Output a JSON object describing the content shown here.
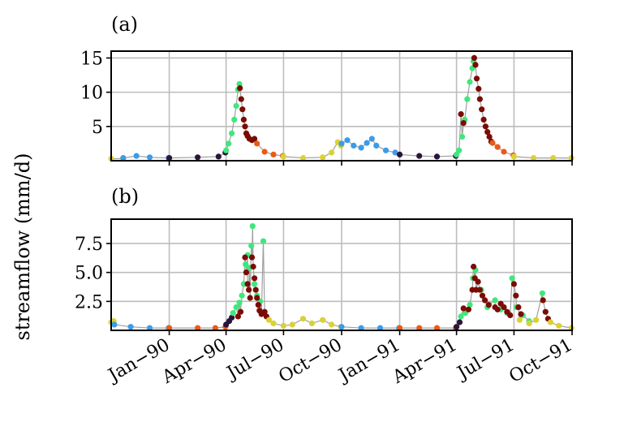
{
  "figure": {
    "ylabel": "streamflow (mm/d)",
    "panel_a_label": "(a)",
    "panel_b_label": "(b)"
  },
  "chart_data": [
    {
      "type": "scatter",
      "panel": "(a)",
      "ylim": [
        0,
        16
      ],
      "yticks": [
        5,
        10,
        15
      ],
      "ytick_labels": [
        "5",
        "10",
        "15"
      ],
      "xlim_months": [
        "1989-10-01",
        "1991-10-01"
      ],
      "grid": true,
      "colors": {
        "blue": "#3d9be8",
        "dark": "#2a1538",
        "green": "#3fe77d",
        "maroon": "#7a0c04",
        "orange": "#e85b19",
        "yellow": "#d9d234",
        "line": "#a0a0a0"
      },
      "segments": [
        {
          "color": "yellow",
          "points": [
            [
              "1989-10-01",
              0.3
            ],
            [
              "1989-10-20",
              0.3
            ]
          ]
        },
        {
          "color": "blue",
          "points": [
            [
              "1989-10-20",
              0.4
            ],
            [
              "1989-11-10",
              0.7
            ],
            [
              "1989-12-01",
              0.5
            ],
            [
              "1989-12-31",
              0.4
            ]
          ]
        },
        {
          "color": "dark",
          "points": [
            [
              "1990-01-01",
              0.4
            ],
            [
              "1990-02-15",
              0.5
            ],
            [
              "1990-03-20",
              0.6
            ],
            [
              "1990-03-31",
              1.2
            ]
          ]
        },
        {
          "color": "green",
          "points": [
            [
              "1990-04-01",
              1.5
            ],
            [
              "1990-04-05",
              2.5
            ],
            [
              "1990-04-10",
              4
            ],
            [
              "1990-04-14",
              6
            ],
            [
              "1990-04-17",
              8
            ],
            [
              "1990-04-20",
              10.4
            ],
            [
              "1990-04-22",
              11.2
            ]
          ]
        },
        {
          "color": "maroon",
          "points": [
            [
              "1990-04-23",
              10.6
            ],
            [
              "1990-04-25",
              9
            ],
            [
              "1990-04-27",
              7.5
            ],
            [
              "1990-04-29",
              6
            ],
            [
              "1990-05-01",
              5
            ],
            [
              "1990-05-03",
              4
            ],
            [
              "1990-05-05",
              3.6
            ],
            [
              "1990-05-08",
              3.2
            ],
            [
              "1990-05-12",
              3
            ],
            [
              "1990-05-16",
              3.2
            ]
          ]
        },
        {
          "color": "orange",
          "points": [
            [
              "1990-05-20",
              2.5
            ],
            [
              "1990-06-01",
              1.3
            ],
            [
              "1990-06-15",
              0.9
            ],
            [
              "1990-06-30",
              0.7
            ]
          ]
        },
        {
          "color": "yellow",
          "points": [
            [
              "1990-07-01",
              0.6
            ],
            [
              "1990-08-01",
              0.4
            ],
            [
              "1990-09-01",
              0.5
            ],
            [
              "1990-09-15",
              1.2
            ],
            [
              "1990-09-25",
              2.7
            ],
            [
              "1990-09-30",
              2.2
            ]
          ]
        },
        {
          "color": "blue",
          "points": [
            [
              "1990-10-01",
              2.5
            ],
            [
              "1990-10-10",
              3.0
            ],
            [
              "1990-10-20",
              2.2
            ],
            [
              "1990-11-01",
              1.9
            ],
            [
              "1990-11-10",
              2.6
            ],
            [
              "1990-11-18",
              3.2
            ],
            [
              "1990-11-25",
              2.2
            ],
            [
              "1990-12-10",
              1.5
            ],
            [
              "1990-12-25",
              1.2
            ]
          ]
        },
        {
          "color": "dark",
          "points": [
            [
              "1991-01-01",
              0.9
            ],
            [
              "1991-02-01",
              0.7
            ],
            [
              "1991-03-01",
              0.6
            ],
            [
              "1991-03-31",
              0.7
            ]
          ]
        },
        {
          "color": "green",
          "points": [
            [
              "1991-04-01",
              0.9
            ],
            [
              "1991-04-05",
              1.5
            ],
            [
              "1991-04-10",
              3.5
            ],
            [
              "1991-04-14",
              6
            ],
            [
              "1991-04-18",
              9
            ],
            [
              "1991-04-22",
              11.5
            ],
            [
              "1991-04-26",
              13.5
            ],
            [
              "1991-04-28",
              14.5
            ]
          ]
        },
        {
          "color": "maroon",
          "points": [
            [
              "1991-04-08",
              6.8
            ],
            [
              "1991-04-12",
              5.5
            ],
            [
              "1991-04-29",
              15
            ],
            [
              "1991-05-01",
              14
            ],
            [
              "1991-05-03",
              12
            ],
            [
              "1991-05-06",
              10.5
            ],
            [
              "1991-05-08",
              9
            ],
            [
              "1991-05-11",
              7.5
            ],
            [
              "1991-05-14",
              6
            ],
            [
              "1991-05-17",
              5
            ],
            [
              "1991-05-20",
              4.2
            ],
            [
              "1991-05-23",
              3.5
            ],
            [
              "1991-05-26",
              2.8
            ]
          ]
        },
        {
          "color": "orange",
          "points": [
            [
              "1991-05-28",
              2.6
            ],
            [
              "1991-06-05",
              2
            ],
            [
              "1991-06-15",
              1.3
            ],
            [
              "1991-06-30",
              0.8
            ]
          ]
        },
        {
          "color": "yellow",
          "points": [
            [
              "1991-07-01",
              0.6
            ],
            [
              "1991-08-01",
              0.4
            ],
            [
              "1991-09-01",
              0.4
            ],
            [
              "1991-09-30",
              0.4
            ]
          ]
        }
      ]
    },
    {
      "type": "scatter",
      "panel": "(b)",
      "ylim": [
        0,
        9.6
      ],
      "yticks": [
        2.5,
        5.0,
        7.5
      ],
      "ytick_labels": [
        "2.5",
        "5.0",
        "7.5"
      ],
      "xlim_months": [
        "1989-10-01",
        "1991-10-01"
      ],
      "xticks": [
        "1990-01-01",
        "1990-04-01",
        "1990-07-01",
        "1990-10-01",
        "1991-01-01",
        "1991-04-01",
        "1991-07-01",
        "1991-10-01"
      ],
      "xtick_labels": [
        "Jan−90",
        "Apr−90",
        "Jul−90",
        "Oct−90",
        "Jan−91",
        "Apr−91",
        "Jul−91",
        "Oct−91"
      ],
      "grid": true,
      "segments": [
        {
          "color": "yellow",
          "points": [
            [
              "1989-10-01",
              0.7
            ],
            [
              "1989-10-05",
              0.8
            ]
          ]
        },
        {
          "color": "blue",
          "points": [
            [
              "1989-10-06",
              0.5
            ],
            [
              "1989-11-01",
              0.3
            ],
            [
              "1989-12-01",
              0.2
            ],
            [
              "1989-12-31",
              0.2
            ]
          ]
        },
        {
          "color": "orange",
          "points": [
            [
              "1990-01-01",
              0.2
            ],
            [
              "1990-02-15",
              0.2
            ],
            [
              "1990-03-15",
              0.2
            ],
            [
              "1990-03-31",
              0.3
            ]
          ]
        },
        {
          "color": "dark",
          "points": [
            [
              "1990-04-01",
              0.5
            ],
            [
              "1990-04-06",
              0.8
            ],
            [
              "1990-04-10",
              1.1
            ]
          ]
        },
        {
          "color": "green",
          "points": [
            [
              "1990-04-12",
              1.5
            ],
            [
              "1990-04-17",
              2
            ],
            [
              "1990-04-22",
              2.4
            ],
            [
              "1990-04-26",
              3
            ],
            [
              "1990-04-29",
              4
            ],
            [
              "1990-05-02",
              5.7
            ],
            [
              "1990-05-05",
              6.5
            ],
            [
              "1990-05-08",
              5.4
            ],
            [
              "1990-05-11",
              7.3
            ],
            [
              "1990-05-13",
              9.0
            ],
            [
              "1990-05-16",
              4
            ],
            [
              "1990-05-20",
              3
            ],
            [
              "1990-05-25",
              2.5
            ],
            [
              "1990-05-30",
              7.7
            ]
          ]
        },
        {
          "color": "maroon",
          "points": [
            [
              "1990-04-20",
              1.2
            ],
            [
              "1990-04-24",
              1.6
            ],
            [
              "1990-05-01",
              6.3
            ],
            [
              "1990-05-03",
              5
            ],
            [
              "1990-05-05",
              4
            ],
            [
              "1990-05-07",
              3.5
            ],
            [
              "1990-05-09",
              2.8
            ],
            [
              "1990-05-12",
              6.3
            ],
            [
              "1990-05-14",
              5.5
            ],
            [
              "1990-05-16",
              4.5
            ],
            [
              "1990-05-18",
              3.5
            ],
            [
              "1990-05-20",
              2.8
            ],
            [
              "1990-05-22",
              2.2
            ],
            [
              "1990-05-24",
              1.7
            ],
            [
              "1990-05-27",
              1.4
            ],
            [
              "1990-06-01",
              1.6
            ],
            [
              "1990-06-04",
              1.2
            ]
          ]
        },
        {
          "color": "yellow",
          "points": [
            [
              "1990-06-08",
              0.9
            ],
            [
              "1990-06-15",
              0.6
            ],
            [
              "1990-07-01",
              0.4
            ],
            [
              "1990-07-15",
              0.5
            ],
            [
              "1990-08-01",
              1.0
            ],
            [
              "1990-08-15",
              0.6
            ],
            [
              "1990-09-01",
              0.9
            ],
            [
              "1990-09-15",
              0.5
            ],
            [
              "1990-09-30",
              0.3
            ]
          ]
        },
        {
          "color": "blue",
          "points": [
            [
              "1990-10-01",
              0.3
            ],
            [
              "1990-11-01",
              0.2
            ],
            [
              "1990-12-01",
              0.2
            ],
            [
              "1990-12-31",
              0.2
            ]
          ]
        },
        {
          "color": "orange",
          "points": [
            [
              "1991-01-01",
              0.2
            ],
            [
              "1991-02-01",
              0.2
            ],
            [
              "1991-03-01",
              0.2
            ],
            [
              "1991-03-31",
              0.2
            ]
          ]
        },
        {
          "color": "dark",
          "points": [
            [
              "1991-04-01",
              0.3
            ],
            [
              "1991-04-06",
              0.7
            ]
          ]
        },
        {
          "color": "green",
          "points": [
            [
              "1991-04-08",
              1.2
            ],
            [
              "1991-04-15",
              1.5
            ],
            [
              "1991-04-22",
              2.2
            ],
            [
              "1991-04-27",
              4.5
            ],
            [
              "1991-05-01",
              5.2
            ],
            [
              "1991-05-10",
              3.5
            ],
            [
              "1991-05-20",
              2.0
            ],
            [
              "1991-06-01",
              2.6
            ],
            [
              "1991-06-10",
              1.8
            ],
            [
              "1991-06-20",
              1.5
            ],
            [
              "1991-06-28",
              4.5
            ],
            [
              "1991-07-05",
              2.0
            ],
            [
              "1991-07-15",
              1.3
            ],
            [
              "1991-07-25",
              0.8
            ],
            [
              "1991-08-15",
              3.2
            ]
          ]
        },
        {
          "color": "maroon",
          "points": [
            [
              "1991-04-12",
              1.9
            ],
            [
              "1991-04-20",
              1.8
            ],
            [
              "1991-04-26",
              3.5
            ],
            [
              "1991-04-28",
              5.5
            ],
            [
              "1991-04-30",
              4.5
            ],
            [
              "1991-05-02",
              3.5
            ],
            [
              "1991-05-05",
              4.2
            ],
            [
              "1991-05-08",
              3.5
            ],
            [
              "1991-05-12",
              3.0
            ],
            [
              "1991-05-16",
              2.6
            ],
            [
              "1991-05-22",
              2.2
            ],
            [
              "1991-06-01",
              2.0
            ],
            [
              "1991-06-05",
              1.8
            ],
            [
              "1991-06-10",
              2.3
            ],
            [
              "1991-06-15",
              2.0
            ],
            [
              "1991-06-20",
              1.6
            ],
            [
              "1991-06-25",
              1.3
            ],
            [
              "1991-07-01",
              4.0
            ],
            [
              "1991-07-04",
              3.0
            ],
            [
              "1991-07-08",
              2.0
            ],
            [
              "1991-07-12",
              1.4
            ],
            [
              "1991-08-16",
              2.6
            ],
            [
              "1991-08-20",
              1.6
            ],
            [
              "1991-08-24",
              1.0
            ]
          ]
        },
        {
          "color": "yellow",
          "points": [
            [
              "1991-07-10",
              0.9
            ],
            [
              "1991-07-25",
              0.6
            ],
            [
              "1991-08-05",
              0.9
            ],
            [
              "1991-08-28",
              0.7
            ],
            [
              "1991-09-10",
              0.4
            ],
            [
              "1991-09-30",
              0.2
            ]
          ]
        }
      ]
    }
  ]
}
